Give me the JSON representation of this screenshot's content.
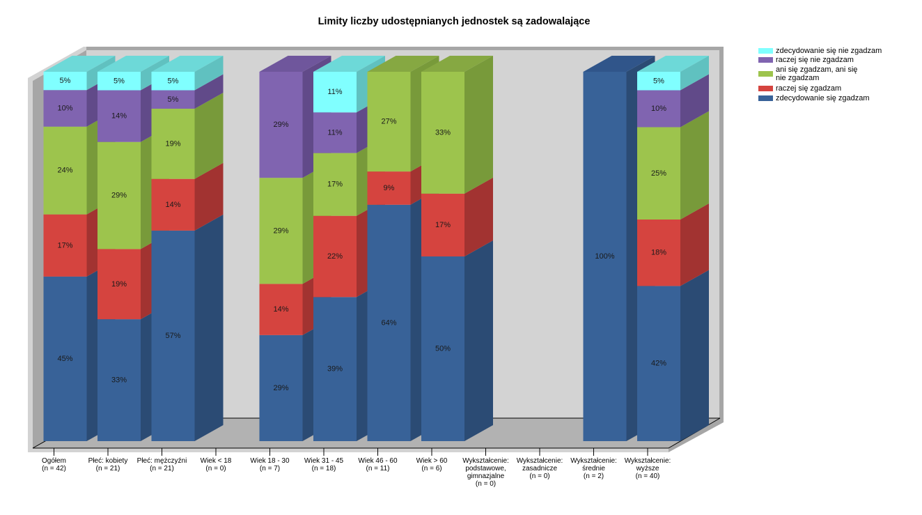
{
  "chart_data": {
    "type": "bar",
    "stacked": true,
    "percent": true,
    "three_d": true,
    "title": "Limity liczby udostępnianych jednostek są zadowalające",
    "xlabel": "",
    "ylabel": "",
    "ylim": [
      0,
      100
    ],
    "grid": false,
    "legend_position": "top-right",
    "value_label_suffix": "%",
    "categories": [
      "Ogółem\n(n = 42)",
      "Płeć: kobiety\n(n = 21)",
      "Płeć: mężczyźni\n(n = 21)",
      "Wiek < 18\n(n = 0)",
      "Wiek 18 - 30\n(n = 7)",
      "Wiek 31 - 45\n(n = 18)",
      "Wiek 46 - 60\n(n = 11)",
      "Wiek > 60\n(n = 6)",
      "Wykształcenie:\npodstawowe,\ngimnazjalne\n(n = 0)",
      "Wykształcenie:\nzasadnicze\n(n = 0)",
      "Wykształcenie:\nśrednie\n(n = 2)",
      "Wykształcenie:\nwyższe\n(n = 40)"
    ],
    "series": [
      {
        "name": "zdecydowanie się zgadzam",
        "color": "#386298",
        "side_color": "#2b4b74",
        "top_color": "#30558a",
        "values": [
          45,
          33,
          57,
          0,
          29,
          39,
          64,
          50,
          0,
          0,
          100,
          42
        ]
      },
      {
        "name": "raczej się zgadzam",
        "color": "#d5443f",
        "side_color": "#a23331",
        "top_color": "#b83a36",
        "values": [
          17,
          19,
          14,
          0,
          14,
          22,
          9,
          17,
          0,
          0,
          0,
          18
        ]
      },
      {
        "name": "ani się zgadzam, ani się\nnie zgadzam",
        "color": "#9dc44d",
        "side_color": "#789a3a",
        "top_color": "#86a842",
        "values": [
          24,
          29,
          19,
          0,
          29,
          17,
          27,
          33,
          0,
          0,
          0,
          25
        ]
      },
      {
        "name": "raczej się nie zgadzam",
        "color": "#8064b0",
        "side_color": "#614a89",
        "top_color": "#6f569c",
        "values": [
          10,
          14,
          5,
          0,
          29,
          11,
          0,
          0,
          0,
          0,
          0,
          10
        ]
      },
      {
        "name": "zdecydowanie się nie zgadzam",
        "color": "#80ffff",
        "side_color": "#60c1c0",
        "top_color": "#6dd9d8",
        "values": [
          5,
          5,
          5,
          0,
          0,
          11,
          0,
          0,
          0,
          0,
          0,
          5
        ]
      }
    ]
  }
}
